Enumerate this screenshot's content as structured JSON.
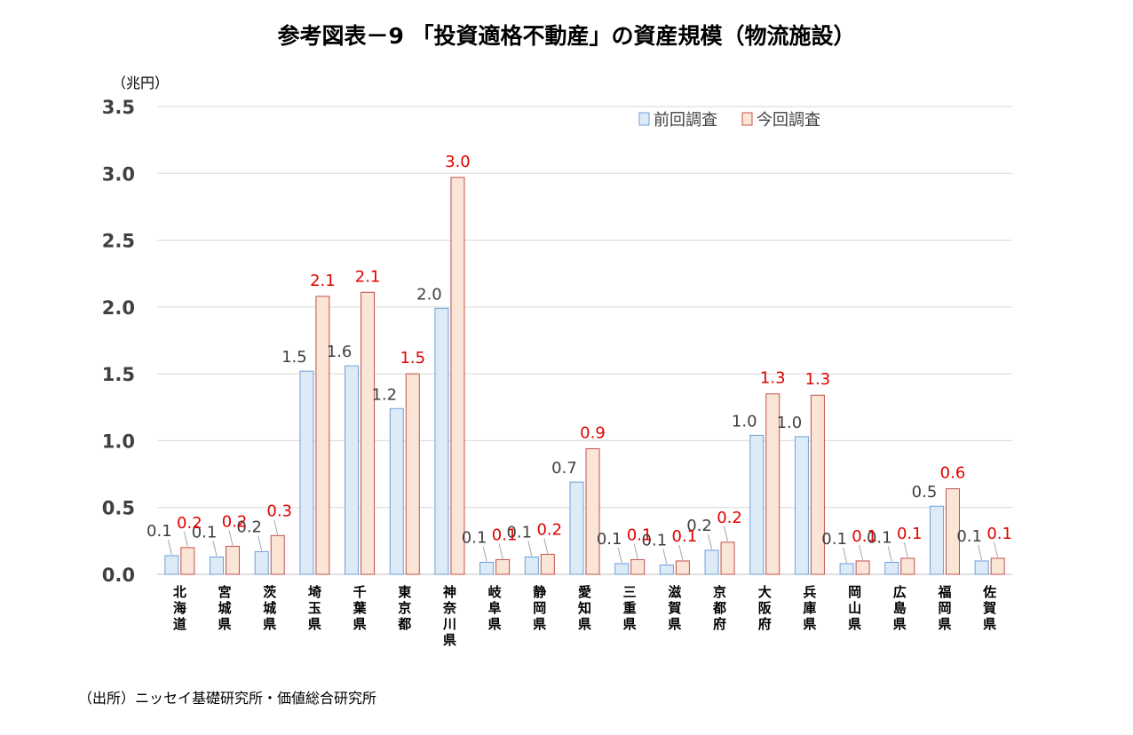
{
  "chart_data": {
    "type": "bar",
    "title": "参考図表－9 「投資適格不動産」の資産規模（物流施設）",
    "unit_label": "（兆円）",
    "ylim": [
      0,
      3.5
    ],
    "yticks": [
      "0.0",
      "0.5",
      "1.0",
      "1.5",
      "2.0",
      "2.5",
      "3.0",
      "3.5"
    ],
    "grid": true,
    "legend_position": "top-right",
    "categories": [
      "北海道",
      "宮城県",
      "茨城県",
      "埼玉県",
      "千葉県",
      "東京都",
      "神奈川県",
      "岐阜県",
      "静岡県",
      "愛知県",
      "三重県",
      "滋賀県",
      "京都府",
      "大阪府",
      "兵庫県",
      "岡山県",
      "広島県",
      "福岡県",
      "佐賀県"
    ],
    "series": [
      {
        "name": "前回調査",
        "color": "#ddebf7",
        "edge": "#6f9fd8",
        "label_color": "#404040",
        "values": [
          0.14,
          0.13,
          0.17,
          1.52,
          1.56,
          1.24,
          1.99,
          0.09,
          0.13,
          0.69,
          0.08,
          0.07,
          0.18,
          1.04,
          1.03,
          0.08,
          0.09,
          0.51,
          0.1
        ],
        "labels": [
          "0.1",
          "0.1",
          "0.2",
          "1.5",
          "1.6",
          "1.2",
          "2.0",
          "0.1",
          "0.1",
          "0.7",
          "0.1",
          "0.1",
          "0.2",
          "1.0",
          "1.0",
          "0.1",
          "0.1",
          "0.5",
          "0.1"
        ]
      },
      {
        "name": "今回調査",
        "color": "#fbe5d6",
        "edge": "#c0504d",
        "label_color": "#e00000",
        "values": [
          0.2,
          0.21,
          0.29,
          2.08,
          2.11,
          1.5,
          2.97,
          0.11,
          0.15,
          0.94,
          0.11,
          0.1,
          0.24,
          1.35,
          1.34,
          0.1,
          0.12,
          0.64,
          0.12
        ],
        "labels": [
          "0.2",
          "0.2",
          "0.3",
          "2.1",
          "2.1",
          "1.5",
          "3.0",
          "0.1",
          "0.2",
          "0.9",
          "0.1",
          "0.1",
          "0.2",
          "1.3",
          "1.3",
          "0.1",
          "0.1",
          "0.6",
          "0.1"
        ]
      }
    ]
  },
  "source": "（出所）ニッセイ基礎研究所・価値総合研究所"
}
